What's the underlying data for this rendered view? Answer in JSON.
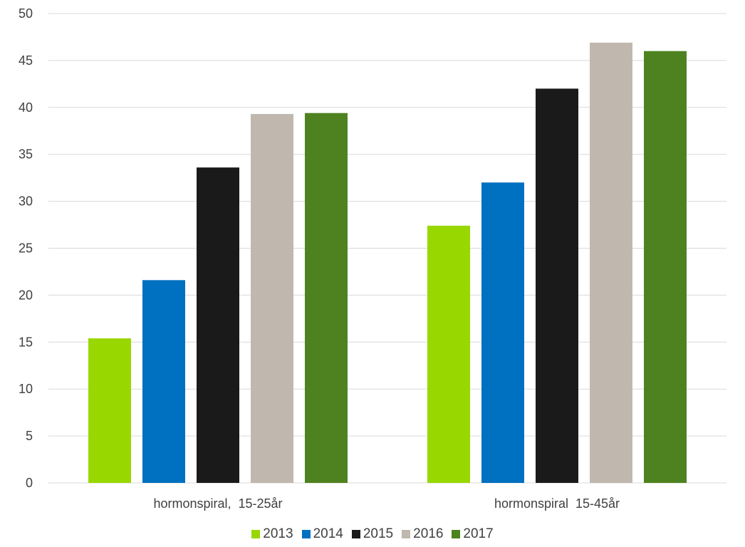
{
  "chart_data": {
    "type": "bar",
    "categories": [
      "hormonspiral,  15-25år",
      "hormonspiral  15-45år"
    ],
    "series": [
      {
        "name": "2013",
        "color": "#99d700",
        "values": [
          15.4,
          27.4
        ]
      },
      {
        "name": "2014",
        "color": "#0070c0",
        "values": [
          21.6,
          32.0
        ]
      },
      {
        "name": "2015",
        "color": "#1a1a1a",
        "values": [
          33.6,
          42.0
        ]
      },
      {
        "name": "2016",
        "color": "#c0b8ae",
        "values": [
          39.3,
          46.9
        ]
      },
      {
        "name": "2017",
        "color": "#4e8220",
        "values": [
          39.4,
          46.0
        ]
      }
    ],
    "y_ticks": [
      "0",
      "5",
      "10",
      "15",
      "20",
      "25",
      "30",
      "35",
      "40",
      "45",
      "50"
    ],
    "ylim": [
      0,
      50
    ],
    "grid": true,
    "legend_position": "bottom"
  }
}
